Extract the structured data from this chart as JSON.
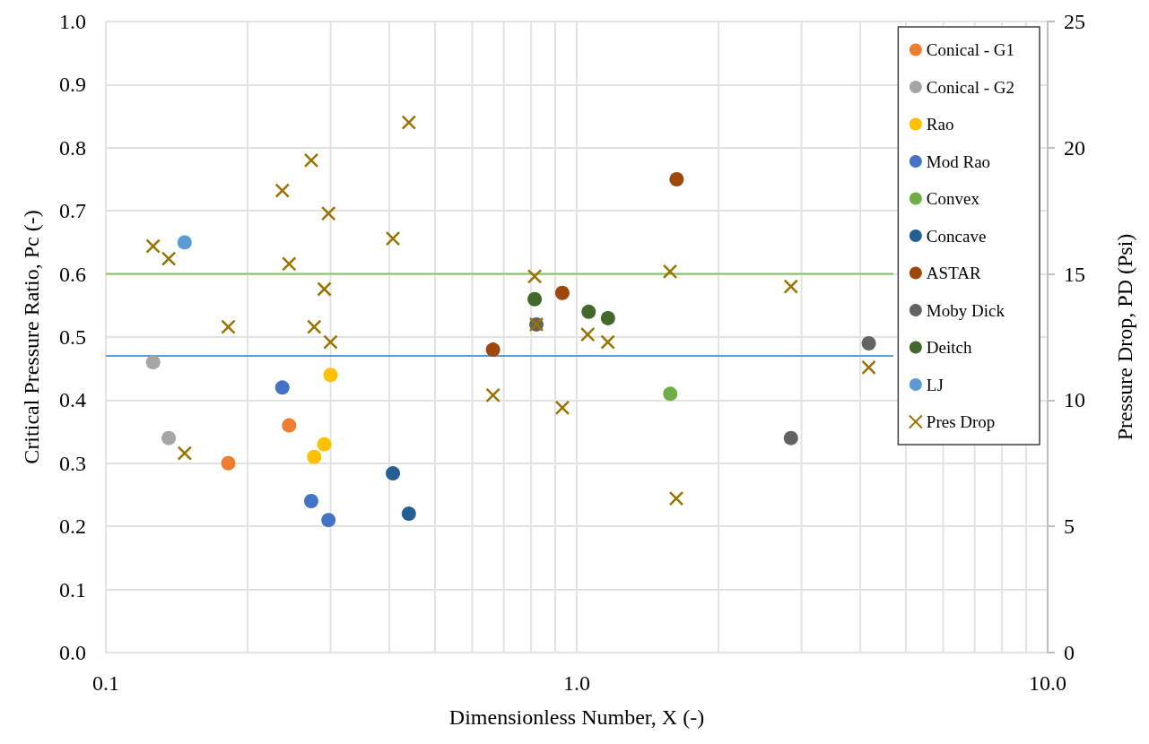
{
  "chart_data": {
    "type": "scatter",
    "xlabel": "Dimensionless Number, X (-)",
    "ylabel": "Critical Pressure Ratio, Pc (-)",
    "y2label": "Pressure Drop, PD (Psi)",
    "log": "x",
    "grid": true,
    "legend": "top right",
    "marker": "circle",
    "xlim": [
      0.1,
      10
    ],
    "xticks": [
      0.1,
      {
        "value": 0.2,
        "label": null
      },
      {
        "value": 0.3,
        "label": null
      },
      {
        "value": 0.4,
        "label": null
      },
      {
        "value": 0.5,
        "label": null
      },
      {
        "value": 0.6,
        "label": null
      },
      {
        "value": 0.7,
        "label": null
      },
      {
        "value": 0.8,
        "label": null
      },
      {
        "value": 0.9,
        "label": null
      },
      {
        "value": 1,
        "label": "1.0"
      },
      {
        "value": 2,
        "label": null
      },
      {
        "value": 3,
        "label": null
      },
      {
        "value": 4,
        "label": null
      },
      {
        "value": 5,
        "label": null
      },
      {
        "value": 6,
        "label": null
      },
      {
        "value": 7,
        "label": null
      },
      {
        "value": 8,
        "label": null
      },
      {
        "value": 9,
        "label": null
      },
      {
        "value": 10,
        "label": "10.0"
      }
    ],
    "ylim": [
      0,
      1
    ],
    "yticks": [
      {
        "value": 0,
        "label": "0.0"
      },
      0.1,
      0.2,
      0.3,
      0.4,
      0.5,
      0.6,
      0.7,
      0.8,
      0.9,
      {
        "value": 1,
        "label": "1.0"
      }
    ],
    "y2lim": [
      0,
      25
    ],
    "y2ticks": [
      0,
      5,
      10,
      15,
      20,
      25
    ],
    "series": [
      {
        "name": "Conical - G1",
        "color": "#ed7d31",
        "x": [
          0.182,
          0.245
        ],
        "values": [
          0.3,
          0.36
        ]
      },
      {
        "name": "Conical - G2",
        "color": "#a5a5a5",
        "x": [
          0.126,
          0.136
        ],
        "values": [
          0.46,
          0.34
        ]
      },
      {
        "name": "Rao",
        "color": "#ffc000",
        "x": [
          0.3,
          0.291,
          0.277
        ],
        "values": [
          0.44,
          0.33,
          0.31
        ]
      },
      {
        "name": "Mod Rao",
        "color": "#4472c4",
        "x": [
          0.237,
          0.273,
          0.297
        ],
        "values": [
          0.42,
          0.24,
          0.21
        ]
      },
      {
        "name": "Convex",
        "color": "#70ad47",
        "x": [
          1.58
        ],
        "values": [
          0.41
        ]
      },
      {
        "name": "Concave",
        "color": "#255e91",
        "x": [
          0.407,
          0.44
        ],
        "values": [
          0.284,
          0.22
        ]
      },
      {
        "name": "ASTAR",
        "color": "#9e480e",
        "x": [
          0.664,
          0.932,
          1.63
        ],
        "values": [
          0.48,
          0.57,
          0.75
        ]
      },
      {
        "name": "Moby Dick",
        "color": "#636363",
        "x": [
          0.821,
          2.85,
          4.17
        ],
        "values": [
          0.52,
          0.34,
          0.49
        ]
      },
      {
        "name": "Deitch",
        "color": "#43682b",
        "x": [
          0.814,
          1.06,
          1.165
        ],
        "values": [
          0.56,
          0.54,
          0.53
        ]
      },
      {
        "name": "LJ",
        "color": "#5b9bd5",
        "x": [
          0.147
        ],
        "values": [
          0.65
        ]
      },
      {
        "name": "Pres Drop",
        "color": "#997300",
        "marker": "cross",
        "axis": "y2",
        "x": [
          0.126,
          0.136,
          0.147,
          0.182,
          0.237,
          0.245,
          0.273,
          0.277,
          0.291,
          0.297,
          0.3,
          0.407,
          0.44,
          0.664,
          0.814,
          0.821,
          0.932,
          1.055,
          1.164,
          1.578,
          1.627,
          2.85,
          4.17
        ],
        "values": [
          16.1,
          15.6,
          7.9,
          12.9,
          18.3,
          15.4,
          19.5,
          12.9,
          14.4,
          17.4,
          12.3,
          16.4,
          21.0,
          10.2,
          14.9,
          13.0,
          9.7,
          12.6,
          12.3,
          15.1,
          6.1,
          14.5,
          11.3
        ]
      },
      {
        "type": "line",
        "color": "#8cbf6c",
        "marker": "none",
        "line_style": "solid",
        "x": [
          0.1,
          4.7
        ],
        "values": [
          0.6,
          0.6
        ]
      },
      {
        "type": "line",
        "color": "#5b9bd5",
        "marker": "none",
        "line_style": "solid",
        "x": [
          0.1,
          4.7
        ],
        "values": [
          0.47,
          0.47
        ]
      }
    ]
  }
}
